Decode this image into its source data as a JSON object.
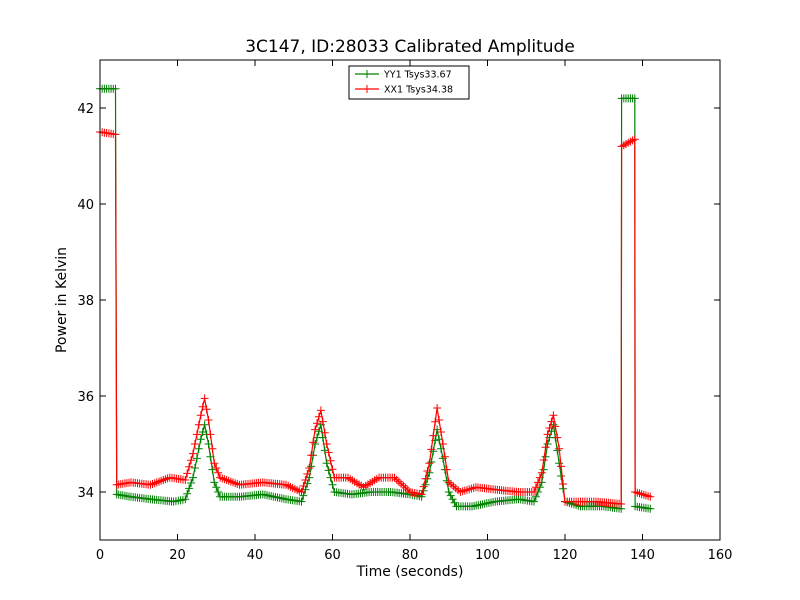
{
  "chart_data": {
    "type": "line",
    "title": "3C147, ID:28033 Calibrated Amplitude",
    "xlabel": "Time (seconds)",
    "ylabel": "Power in Kelvin",
    "xlim": [
      0,
      160
    ],
    "ylim": [
      33,
      43
    ],
    "xticks": [
      0,
      20,
      40,
      60,
      80,
      100,
      120,
      140,
      160
    ],
    "yticks": [
      34,
      36,
      38,
      40,
      42
    ],
    "grid": false,
    "legend_position": "top-center",
    "marker": "plus",
    "series": [
      {
        "name": "YY1 Tsys33.67",
        "color": "#008000",
        "x": [
          0,
          4,
          4.3,
          8,
          13,
          19,
          22,
          24,
          26,
          27,
          28,
          29.5,
          31,
          36,
          42,
          48,
          52,
          54,
          55.5,
          57,
          58.5,
          60.5,
          65,
          70,
          75,
          80,
          83,
          85,
          87,
          88.5,
          90,
          92,
          96,
          102,
          108,
          112,
          114,
          115.5,
          117,
          118.5,
          120,
          124,
          130,
          134.5,
          134.6,
          138,
          138.1,
          142
        ],
        "values": [
          42.4,
          42.4,
          33.95,
          33.9,
          33.85,
          33.8,
          33.85,
          34.3,
          35.1,
          35.4,
          35.0,
          34.2,
          33.9,
          33.9,
          33.95,
          33.85,
          33.8,
          34.3,
          35.0,
          35.4,
          34.6,
          34.0,
          33.95,
          34.0,
          34.0,
          33.95,
          33.9,
          34.4,
          35.3,
          34.7,
          34.0,
          33.7,
          33.7,
          33.8,
          33.85,
          33.8,
          34.2,
          35.0,
          35.4,
          34.6,
          33.8,
          33.7,
          33.7,
          33.65,
          42.2,
          42.2,
          33.7,
          33.65
        ]
      },
      {
        "name": "XX1 Tsys34.38",
        "color": "#ff0000",
        "x": [
          0,
          4,
          4.3,
          8,
          13,
          18,
          22,
          24,
          26,
          27,
          28,
          29.5,
          31,
          36,
          42,
          48,
          52,
          54,
          55.5,
          57,
          58.5,
          60.5,
          64,
          68,
          72,
          76,
          80,
          83,
          85,
          87,
          88.5,
          90,
          93,
          97,
          102,
          108,
          112,
          114,
          115.5,
          117,
          118.5,
          120,
          124,
          128,
          134.5,
          134.6,
          138,
          138.1,
          142
        ],
        "values": [
          41.5,
          41.45,
          34.15,
          34.2,
          34.15,
          34.3,
          34.25,
          34.8,
          35.6,
          35.95,
          35.5,
          34.6,
          34.3,
          34.15,
          34.2,
          34.15,
          34.0,
          34.5,
          35.3,
          35.7,
          35.0,
          34.3,
          34.3,
          34.1,
          34.3,
          34.3,
          34.0,
          33.95,
          34.6,
          35.75,
          35.0,
          34.2,
          34.0,
          34.1,
          34.05,
          34.0,
          34.0,
          34.4,
          35.2,
          35.6,
          34.9,
          33.8,
          33.8,
          33.8,
          33.75,
          41.2,
          41.35,
          34.0,
          33.9
        ]
      }
    ]
  }
}
